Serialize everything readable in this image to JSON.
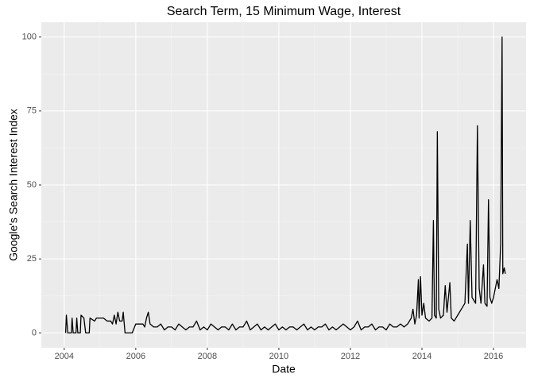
{
  "chart_data": {
    "type": "line",
    "title": "Search Term, 15 Minimum Wage, Interest",
    "x_label": "Date",
    "y_label": "Google's Search Interest Index",
    "color": "#000000",
    "grid": true,
    "xlim": [
      2003.36,
      2016.91
    ],
    "ylim": [
      -5,
      105
    ],
    "xticks": [
      2004,
      2006,
      2008,
      2010,
      2012,
      2014,
      2016
    ],
    "yticks": [
      0,
      25,
      50,
      75,
      100
    ],
    "x": [
      2004.04,
      2004.06,
      2004.1,
      2004.2,
      2004.22,
      2004.25,
      2004.33,
      2004.35,
      2004.38,
      2004.45,
      2004.47,
      2004.55,
      2004.6,
      2004.7,
      2004.72,
      2004.85,
      2004.9,
      2005.1,
      2005.2,
      2005.3,
      2005.35,
      2005.4,
      2005.45,
      2005.5,
      2005.55,
      2005.62,
      2005.65,
      2005.7,
      2005.9,
      2006.0,
      2006.2,
      2006.25,
      2006.3,
      2006.35,
      2006.4,
      2006.5,
      2006.6,
      2006.7,
      2006.8,
      2006.9,
      2007.0,
      2007.1,
      2007.2,
      2007.3,
      2007.4,
      2007.5,
      2007.6,
      2007.7,
      2007.8,
      2007.9,
      2008.0,
      2008.1,
      2008.2,
      2008.3,
      2008.4,
      2008.5,
      2008.6,
      2008.7,
      2008.8,
      2008.9,
      2009.0,
      2009.1,
      2009.2,
      2009.3,
      2009.4,
      2009.5,
      2009.6,
      2009.7,
      2009.8,
      2009.9,
      2010.0,
      2010.1,
      2010.2,
      2010.3,
      2010.4,
      2010.5,
      2010.6,
      2010.7,
      2010.8,
      2010.9,
      2011.0,
      2011.1,
      2011.2,
      2011.3,
      2011.4,
      2011.5,
      2011.6,
      2011.7,
      2011.8,
      2011.9,
      2012.0,
      2012.1,
      2012.2,
      2012.3,
      2012.4,
      2012.5,
      2012.6,
      2012.7,
      2012.8,
      2012.9,
      2013.0,
      2013.1,
      2013.2,
      2013.3,
      2013.4,
      2013.5,
      2013.6,
      2013.7,
      2013.75,
      2013.8,
      2013.85,
      2013.9,
      2013.92,
      2013.96,
      2014.0,
      2014.05,
      2014.1,
      2014.2,
      2014.28,
      2014.32,
      2014.35,
      2014.4,
      2014.43,
      2014.47,
      2014.52,
      2014.6,
      2014.65,
      2014.7,
      2014.78,
      2014.82,
      2014.9,
      2015.0,
      2015.1,
      2015.2,
      2015.27,
      2015.3,
      2015.35,
      2015.4,
      2015.5,
      2015.55,
      2015.6,
      2015.65,
      2015.72,
      2015.76,
      2015.82,
      2015.86,
      2015.9,
      2015.95,
      2016.0,
      2016.1,
      2016.15,
      2016.2,
      2016.24,
      2016.26,
      2016.3,
      2016.33
    ],
    "values": [
      0,
      6,
      0,
      0,
      5,
      0,
      0,
      5,
      0,
      0,
      6,
      5,
      0,
      0,
      5,
      4,
      5,
      5,
      4,
      4,
      3,
      6,
      3,
      7,
      4,
      4,
      7,
      0,
      0,
      3,
      3,
      2,
      5,
      7,
      3,
      2,
      2,
      3,
      1,
      2,
      2,
      1,
      3,
      2,
      1,
      2,
      2,
      4,
      1,
      2,
      1,
      3,
      2,
      1,
      2,
      2,
      1,
      3,
      1,
      2,
      2,
      4,
      1,
      2,
      3,
      1,
      2,
      1,
      2,
      3,
      1,
      2,
      1,
      2,
      2,
      1,
      2,
      3,
      1,
      2,
      1,
      2,
      2,
      3,
      1,
      2,
      1,
      2,
      3,
      2,
      1,
      2,
      4,
      1,
      2,
      2,
      3,
      1,
      2,
      2,
      1,
      3,
      2,
      2,
      3,
      2,
      3,
      5,
      8,
      3,
      6,
      18,
      5,
      19,
      6,
      10,
      5,
      4,
      5,
      38,
      6,
      5,
      68,
      8,
      5,
      6,
      16,
      7,
      17,
      5,
      4,
      6,
      8,
      10,
      30,
      10,
      38,
      12,
      10,
      70,
      15,
      10,
      23,
      10,
      9,
      45,
      12,
      10,
      12,
      18,
      15,
      30,
      100,
      20,
      22,
      20
    ]
  }
}
